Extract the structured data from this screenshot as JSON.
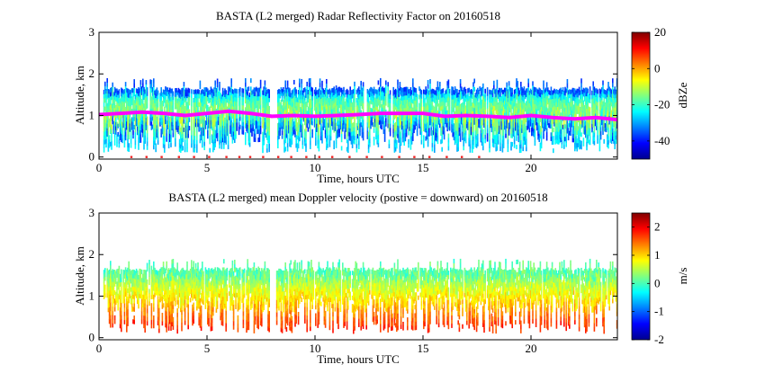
{
  "chart_data": [
    {
      "type": "heatmap",
      "title": "BASTA (L2 merged) Radar Reflectivity Factor on 20160518",
      "xlabel": "Time, hours UTC",
      "ylabel": "Altitude, km",
      "xlim": [
        0,
        24
      ],
      "ylim": [
        -0.05,
        3
      ],
      "xticks": [
        0,
        5,
        10,
        15,
        20
      ],
      "yticks": [
        0,
        1,
        2,
        3
      ],
      "colorbar": {
        "label": "dBZe",
        "range": [
          -50,
          20
        ],
        "ticks": [
          20,
          0,
          -20,
          -40
        ],
        "colormap": "jet"
      },
      "echo_layer": {
        "base_km": 0.35,
        "base_low_km": 0.1,
        "top_km": 1.6,
        "top_high_km": 1.8,
        "coverage_hours": [
          [
            0.2,
            7.9
          ],
          [
            8.2,
            24
          ]
        ],
        "texture": "fallstreaks"
      },
      "overlay_line": {
        "name": "magenta line",
        "color": "#ff00ff",
        "x": [
          0,
          1,
          2,
          3,
          4,
          5,
          6,
          7,
          8,
          9,
          10,
          11,
          12,
          13,
          14,
          15,
          16,
          17,
          18,
          19,
          20,
          21,
          22,
          23,
          24
        ],
        "y": [
          1.02,
          1.05,
          1.08,
          1.05,
          1.0,
          1.05,
          1.1,
          1.05,
          0.98,
          1.0,
          0.98,
          1.0,
          1.02,
          1.05,
          1.05,
          1.05,
          0.98,
          1.0,
          0.98,
          0.95,
          1.0,
          0.95,
          0.92,
          0.95,
          0.9
        ]
      },
      "surface_markers": {
        "color": "#ee2222",
        "y": 0,
        "x": [
          1.5,
          2.2,
          2.9,
          3.7,
          4.4,
          5.1,
          5.9,
          6.5,
          7.0,
          7.6,
          8.3,
          8.9,
          9.6,
          10.2,
          10.8,
          11.6,
          12.4,
          13.1,
          13.9,
          14.6,
          15.3,
          16.1,
          16.8,
          17.6
        ]
      }
    },
    {
      "type": "heatmap",
      "title": "BASTA (L2 merged) mean Doppler velocity (postive = downward) on 20160518",
      "xlabel": "Time, hours UTC",
      "ylabel": "Altitude, km",
      "xlim": [
        0,
        24
      ],
      "ylim": [
        -0.05,
        3
      ],
      "xticks": [
        0,
        5,
        10,
        15,
        20
      ],
      "yticks": [
        0,
        1,
        2,
        3
      ],
      "colorbar": {
        "label": "m/s",
        "range": [
          -2,
          2.5
        ],
        "ticks": [
          2,
          1,
          0,
          -1,
          -2
        ],
        "colormap": "jet"
      },
      "echo_layer": {
        "base_km": 0.6,
        "base_low_km": 0.1,
        "top_km": 1.6,
        "top_high_km": 1.8,
        "coverage_hours": [
          [
            0.2,
            7.9
          ],
          [
            8.2,
            24
          ]
        ],
        "texture": "fallstreaks"
      }
    }
  ]
}
